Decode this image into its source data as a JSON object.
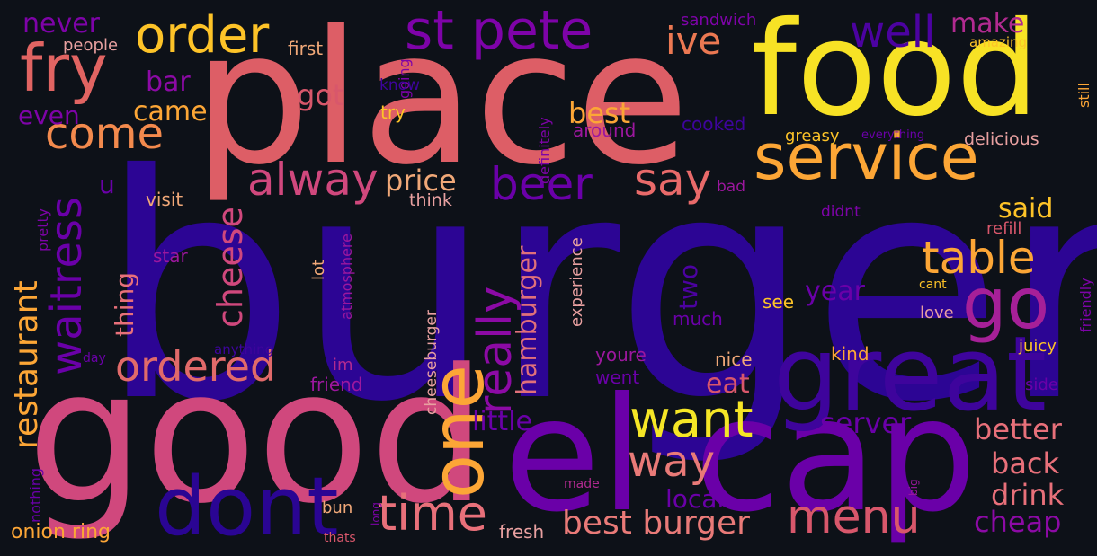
{
  "words": [
    {
      "text": "burger",
      "color": "#2c0594",
      "orientation": "horizontal"
    },
    {
      "text": "place",
      "color": "#dd5e66",
      "orientation": "horizontal"
    },
    {
      "text": "good",
      "color": "#d0487d",
      "orientation": "horizontal"
    },
    {
      "text": "food",
      "color": "#f7e225",
      "orientation": "horizontal"
    },
    {
      "text": "el cap",
      "color": "#6a00a8",
      "orientation": "horizontal"
    },
    {
      "text": "great",
      "color": "#3e049c",
      "orientation": "horizontal"
    },
    {
      "text": "service",
      "color": "#fca636",
      "orientation": "horizontal"
    },
    {
      "text": "dont",
      "color": "#2a0593",
      "orientation": "horizontal"
    },
    {
      "text": "one",
      "color": "#fca636",
      "orientation": "vertical"
    },
    {
      "text": "go",
      "color": "#a62098",
      "orientation": "horizontal"
    },
    {
      "text": "fry",
      "color": "#e16462",
      "orientation": "horizontal"
    },
    {
      "text": "st pete",
      "color": "#7e03a8",
      "orientation": "horizontal"
    },
    {
      "text": "order",
      "color": "#fdc328",
      "orientation": "horizontal"
    },
    {
      "text": "want",
      "color": "#f5e626",
      "orientation": "horizontal"
    },
    {
      "text": "time",
      "color": "#e8707a",
      "orientation": "horizontal"
    },
    {
      "text": "menu",
      "color": "#d8576b",
      "orientation": "horizontal"
    },
    {
      "text": "really",
      "color": "#8c0aa5",
      "orientation": "vertical"
    },
    {
      "text": "waitress",
      "color": "#6a00a8",
      "orientation": "vertical"
    },
    {
      "text": "alway",
      "color": "#d0487d",
      "orientation": "horizontal"
    },
    {
      "text": "come",
      "color": "#f38a4d",
      "orientation": "horizontal"
    },
    {
      "text": "ordered",
      "color": "#e16a6a",
      "orientation": "horizontal"
    },
    {
      "text": "way",
      "color": "#e97a78",
      "orientation": "horizontal"
    },
    {
      "text": "beer",
      "color": "#6a00a8",
      "orientation": "horizontal"
    },
    {
      "text": "say",
      "color": "#e96a6a",
      "orientation": "horizontal"
    },
    {
      "text": "table",
      "color": "#fca636",
      "orientation": "horizontal"
    },
    {
      "text": "well",
      "color": "#4c02a1",
      "orientation": "horizontal"
    },
    {
      "text": "ive",
      "color": "#eb7852",
      "orientation": "horizontal"
    },
    {
      "text": "best burger",
      "color": "#e97a78",
      "orientation": "horizontal"
    },
    {
      "text": "cheese",
      "color": "#d0487d",
      "orientation": "vertical"
    },
    {
      "text": "restaurant",
      "color": "#fca636",
      "orientation": "vertical"
    },
    {
      "text": "hamburger",
      "color": "#e0707a",
      "orientation": "vertical"
    },
    {
      "text": "price",
      "color": "#f0a878",
      "orientation": "horizontal"
    },
    {
      "text": "drink",
      "color": "#e8707a",
      "orientation": "horizontal"
    },
    {
      "text": "back",
      "color": "#e8707a",
      "orientation": "horizontal"
    },
    {
      "text": "better",
      "color": "#e8707a",
      "orientation": "horizontal"
    },
    {
      "text": "cheap",
      "color": "#8c0aa5",
      "orientation": "horizontal"
    },
    {
      "text": "server",
      "color": "#6a00a8",
      "orientation": "horizontal"
    },
    {
      "text": "little",
      "color": "#6a00a8",
      "orientation": "horizontal"
    },
    {
      "text": "local",
      "color": "#6a00a8",
      "orientation": "horizontal"
    },
    {
      "text": "eat",
      "color": "#d8576b",
      "orientation": "horizontal"
    },
    {
      "text": "year",
      "color": "#6a00a8",
      "orientation": "horizontal"
    },
    {
      "text": "make",
      "color": "#b12a90",
      "orientation": "horizontal"
    },
    {
      "text": "said",
      "color": "#fdc328",
      "orientation": "horizontal"
    },
    {
      "text": "got",
      "color": "#d8576b",
      "orientation": "horizontal"
    },
    {
      "text": "best",
      "color": "#fca636",
      "orientation": "horizontal"
    },
    {
      "text": "came",
      "color": "#fca636",
      "orientation": "horizontal"
    },
    {
      "text": "bar",
      "color": "#8c0aa5",
      "orientation": "horizontal"
    },
    {
      "text": "never",
      "color": "#7e03a8",
      "orientation": "horizontal"
    },
    {
      "text": "even",
      "color": "#7e03a8",
      "orientation": "horizontal"
    },
    {
      "text": "thing",
      "color": "#e8707a",
      "orientation": "vertical"
    },
    {
      "text": "two",
      "color": "#4c02a1",
      "orientation": "vertical"
    },
    {
      "text": "u",
      "color": "#6a00a8",
      "orientation": "horizontal"
    },
    {
      "text": "onion ring",
      "color": "#fca636",
      "orientation": "horizontal"
    },
    {
      "text": "people",
      "color": "#e8a0a0",
      "orientation": "horizontal"
    },
    {
      "text": "first",
      "color": "#f0a878",
      "orientation": "horizontal"
    },
    {
      "text": "going",
      "color": "#7e03a8",
      "orientation": "vertical"
    },
    {
      "text": "sandwich",
      "color": "#7e03a8",
      "orientation": "horizontal"
    },
    {
      "text": "amazing",
      "color": "#fdc328",
      "orientation": "horizontal"
    },
    {
      "text": "still",
      "color": "#fca636",
      "orientation": "vertical"
    },
    {
      "text": "know",
      "color": "#3e049c",
      "orientation": "horizontal"
    },
    {
      "text": "try",
      "color": "#fdc328",
      "orientation": "horizontal"
    },
    {
      "text": "definitely",
      "color": "#7e03a8",
      "orientation": "vertical"
    },
    {
      "text": "around",
      "color": "#9c179e",
      "orientation": "horizontal"
    },
    {
      "text": "cooked",
      "color": "#3e049c",
      "orientation": "horizontal"
    },
    {
      "text": "greasy",
      "color": "#fdc328",
      "orientation": "horizontal"
    },
    {
      "text": "everything",
      "color": "#6a00a8",
      "orientation": "horizontal"
    },
    {
      "text": "delicious",
      "color": "#e8a0a0",
      "orientation": "horizontal"
    },
    {
      "text": "pretty",
      "color": "#7e03a8",
      "orientation": "vertical"
    },
    {
      "text": "visit",
      "color": "#f0a878",
      "orientation": "horizontal"
    },
    {
      "text": "think",
      "color": "#e8a0a0",
      "orientation": "horizontal"
    },
    {
      "text": "bad",
      "color": "#9c179e",
      "orientation": "horizontal"
    },
    {
      "text": "didnt",
      "color": "#7e03a8",
      "orientation": "horizontal"
    },
    {
      "text": "refill",
      "color": "#d8576b",
      "orientation": "horizontal"
    },
    {
      "text": "atmosphere",
      "color": "#9c179e",
      "orientation": "vertical"
    },
    {
      "text": "lot",
      "color": "#f0a878",
      "orientation": "vertical"
    },
    {
      "text": "star",
      "color": "#9c179e",
      "orientation": "horizontal"
    },
    {
      "text": "experience",
      "color": "#e8a0a0",
      "orientation": "vertical"
    },
    {
      "text": "friendly",
      "color": "#7e03a8",
      "orientation": "vertical"
    },
    {
      "text": "cant",
      "color": "#fdc328",
      "orientation": "horizontal"
    },
    {
      "text": "see",
      "color": "#fdc328",
      "orientation": "horizontal"
    },
    {
      "text": "much",
      "color": "#6a00a8",
      "orientation": "horizontal"
    },
    {
      "text": "love",
      "color": "#e8a0a0",
      "orientation": "horizontal"
    },
    {
      "text": "anything",
      "color": "#3e049c",
      "orientation": "horizontal"
    },
    {
      "text": "kind",
      "color": "#fca636",
      "orientation": "horizontal"
    },
    {
      "text": "juicy",
      "color": "#fdc328",
      "orientation": "horizontal"
    },
    {
      "text": "day",
      "color": "#6a00a8",
      "orientation": "horizontal"
    },
    {
      "text": "im",
      "color": "#b12a90",
      "orientation": "horizontal"
    },
    {
      "text": "cheeseburger",
      "color": "#e8a0a0",
      "orientation": "vertical"
    },
    {
      "text": "youre",
      "color": "#9c179e",
      "orientation": "horizontal"
    },
    {
      "text": "nice",
      "color": "#f0a878",
      "orientation": "horizontal"
    },
    {
      "text": "went",
      "color": "#6a00a8",
      "orientation": "horizontal"
    },
    {
      "text": "friend",
      "color": "#9c179e",
      "orientation": "horizontal"
    },
    {
      "text": "side",
      "color": "#6a00a8",
      "orientation": "horizontal"
    },
    {
      "text": "nothing",
      "color": "#6a00a8",
      "orientation": "vertical"
    },
    {
      "text": "made",
      "color": "#b12a90",
      "orientation": "horizontal"
    },
    {
      "text": "big",
      "color": "#9c179e",
      "orientation": "vertical"
    },
    {
      "text": "bun",
      "color": "#f0a878",
      "orientation": "horizontal"
    },
    {
      "text": "long",
      "color": "#7e03a8",
      "orientation": "vertical"
    },
    {
      "text": "thats",
      "color": "#d8576b",
      "orientation": "horizontal"
    },
    {
      "text": "fresh",
      "color": "#e8a0a0",
      "orientation": "horizontal"
    }
  ]
}
